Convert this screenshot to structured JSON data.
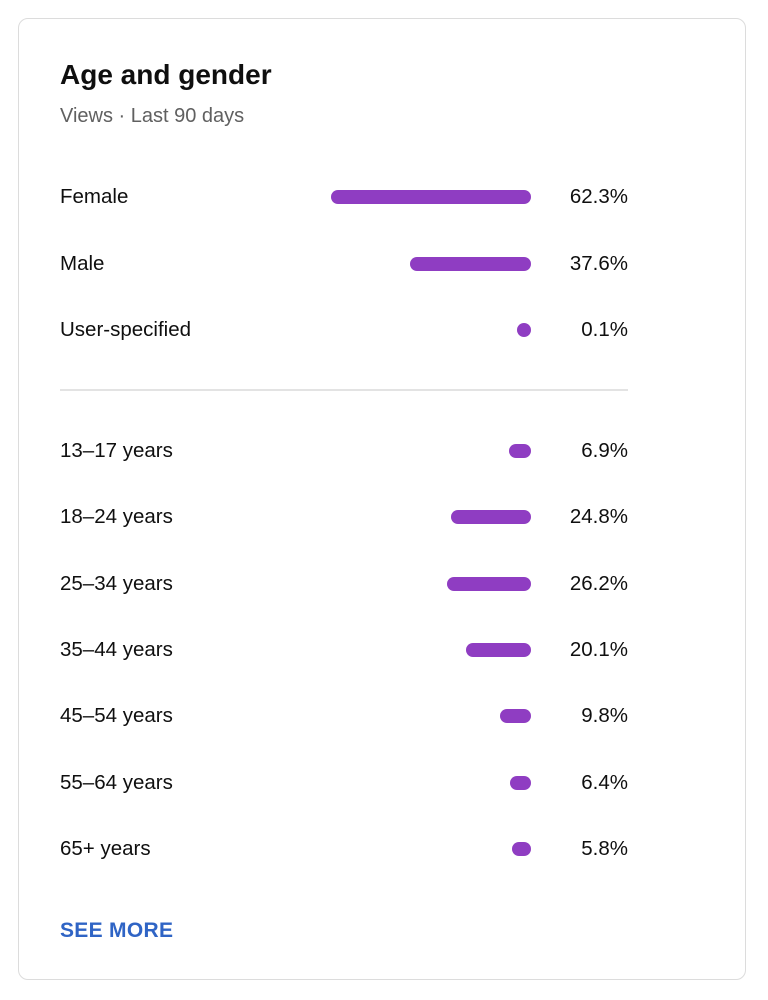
{
  "card": {
    "title": "Age and gender",
    "subtitle": "Views · Last 90 days",
    "see_more_label": "SEE MORE"
  },
  "colors": {
    "bar": "#8f3dc2",
    "link": "#2f64c5"
  },
  "chart_data": {
    "type": "bar",
    "orientation": "horizontal",
    "gender": [
      {
        "label": "Female",
        "value": 62.3,
        "display": "62.3%"
      },
      {
        "label": "Male",
        "value": 37.6,
        "display": "37.6%"
      },
      {
        "label": "User-specified",
        "value": 0.1,
        "display": "0.1%"
      }
    ],
    "age": [
      {
        "label": "13–17 years",
        "value": 6.9,
        "display": "6.9%"
      },
      {
        "label": "18–24 years",
        "value": 24.8,
        "display": "24.8%"
      },
      {
        "label": "25–34 years",
        "value": 26.2,
        "display": "26.2%"
      },
      {
        "label": "35–44 years",
        "value": 20.1,
        "display": "20.1%"
      },
      {
        "label": "45–54 years",
        "value": 9.8,
        "display": "9.8%"
      },
      {
        "label": "55–64 years",
        "value": 6.4,
        "display": "6.4%"
      },
      {
        "label": "65+ years",
        "value": 5.8,
        "display": "5.8%"
      }
    ]
  }
}
